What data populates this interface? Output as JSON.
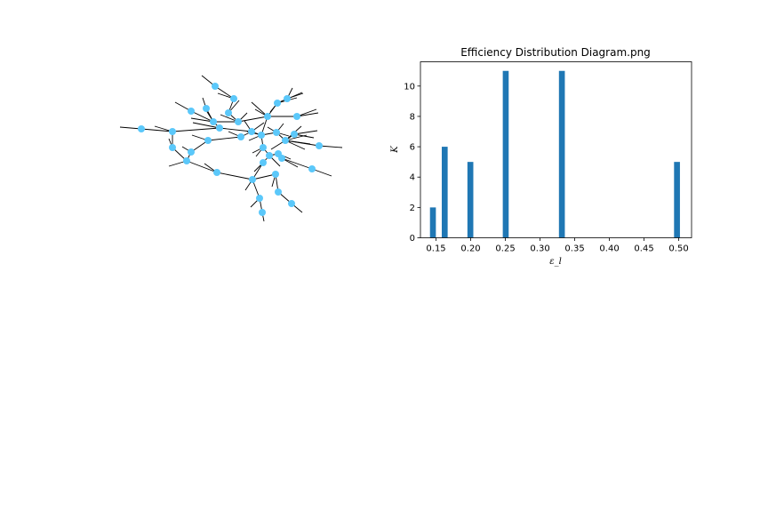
{
  "network_graph": {
    "node_color": "#5bc8fa",
    "edge_color": "#000000"
  },
  "chart_data": {
    "type": "bar",
    "title": "Efficiency Distribution Diagram.png",
    "xlabel": "ε_l",
    "ylabel": "K",
    "x": [
      0.1455,
      0.1625,
      0.1995,
      0.2505,
      0.3315,
      0.4975
    ],
    "values": [
      2,
      6,
      5,
      11,
      11,
      5
    ],
    "xlim": [
      0.1275,
      0.5185
    ],
    "ylim": [
      0,
      11.6
    ],
    "xticks": [
      "0.15",
      "0.20",
      "0.25",
      "0.30",
      "0.35",
      "0.40",
      "0.45",
      "0.50"
    ],
    "yticks": [
      "0",
      "2",
      "4",
      "6",
      "8",
      "10"
    ],
    "bar_color": "#1f77b4",
    "grid": false
  }
}
